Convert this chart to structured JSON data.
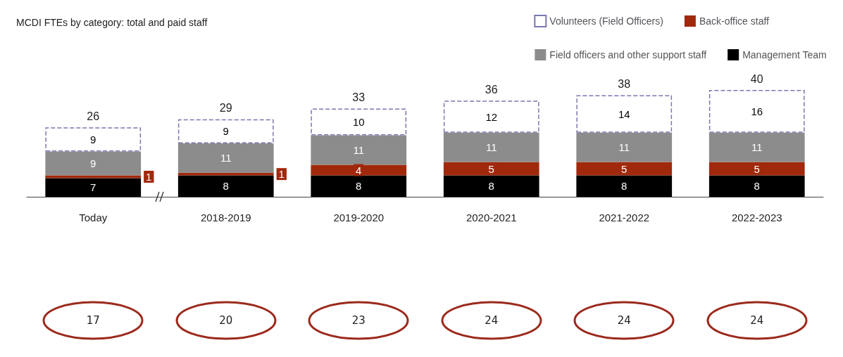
{
  "chart_data": {
    "type": "bar",
    "title": "MCDI FTEs by category: total and paid staff",
    "stacked": true,
    "categories": [
      "Today",
      "2018-2019",
      "2019-2020",
      "2020-2021",
      "2021-2022",
      "2022-2023"
    ],
    "series": [
      {
        "name": "Management Team",
        "color": "#000000",
        "values": [
          7,
          8,
          8,
          8,
          8,
          8
        ]
      },
      {
        "name": "Back-office staff",
        "color": "#a0290c",
        "values": [
          1,
          1,
          4,
          5,
          5,
          5
        ]
      },
      {
        "name": "Field officers and other support staff",
        "color": "#8c8c8c",
        "values": [
          9,
          11,
          11,
          11,
          11,
          11
        ]
      },
      {
        "name": "Volunteers (Field Officers)",
        "color": "#ffffff",
        "values": [
          9,
          9,
          10,
          12,
          14,
          16
        ]
      }
    ],
    "totals": [
      "26",
      "29",
      "33",
      "36",
      "38",
      "40"
    ],
    "annotations": [
      "17",
      "20",
      "23",
      "24",
      "24",
      "24"
    ],
    "data_labels": true,
    "legend": "top right"
  }
}
